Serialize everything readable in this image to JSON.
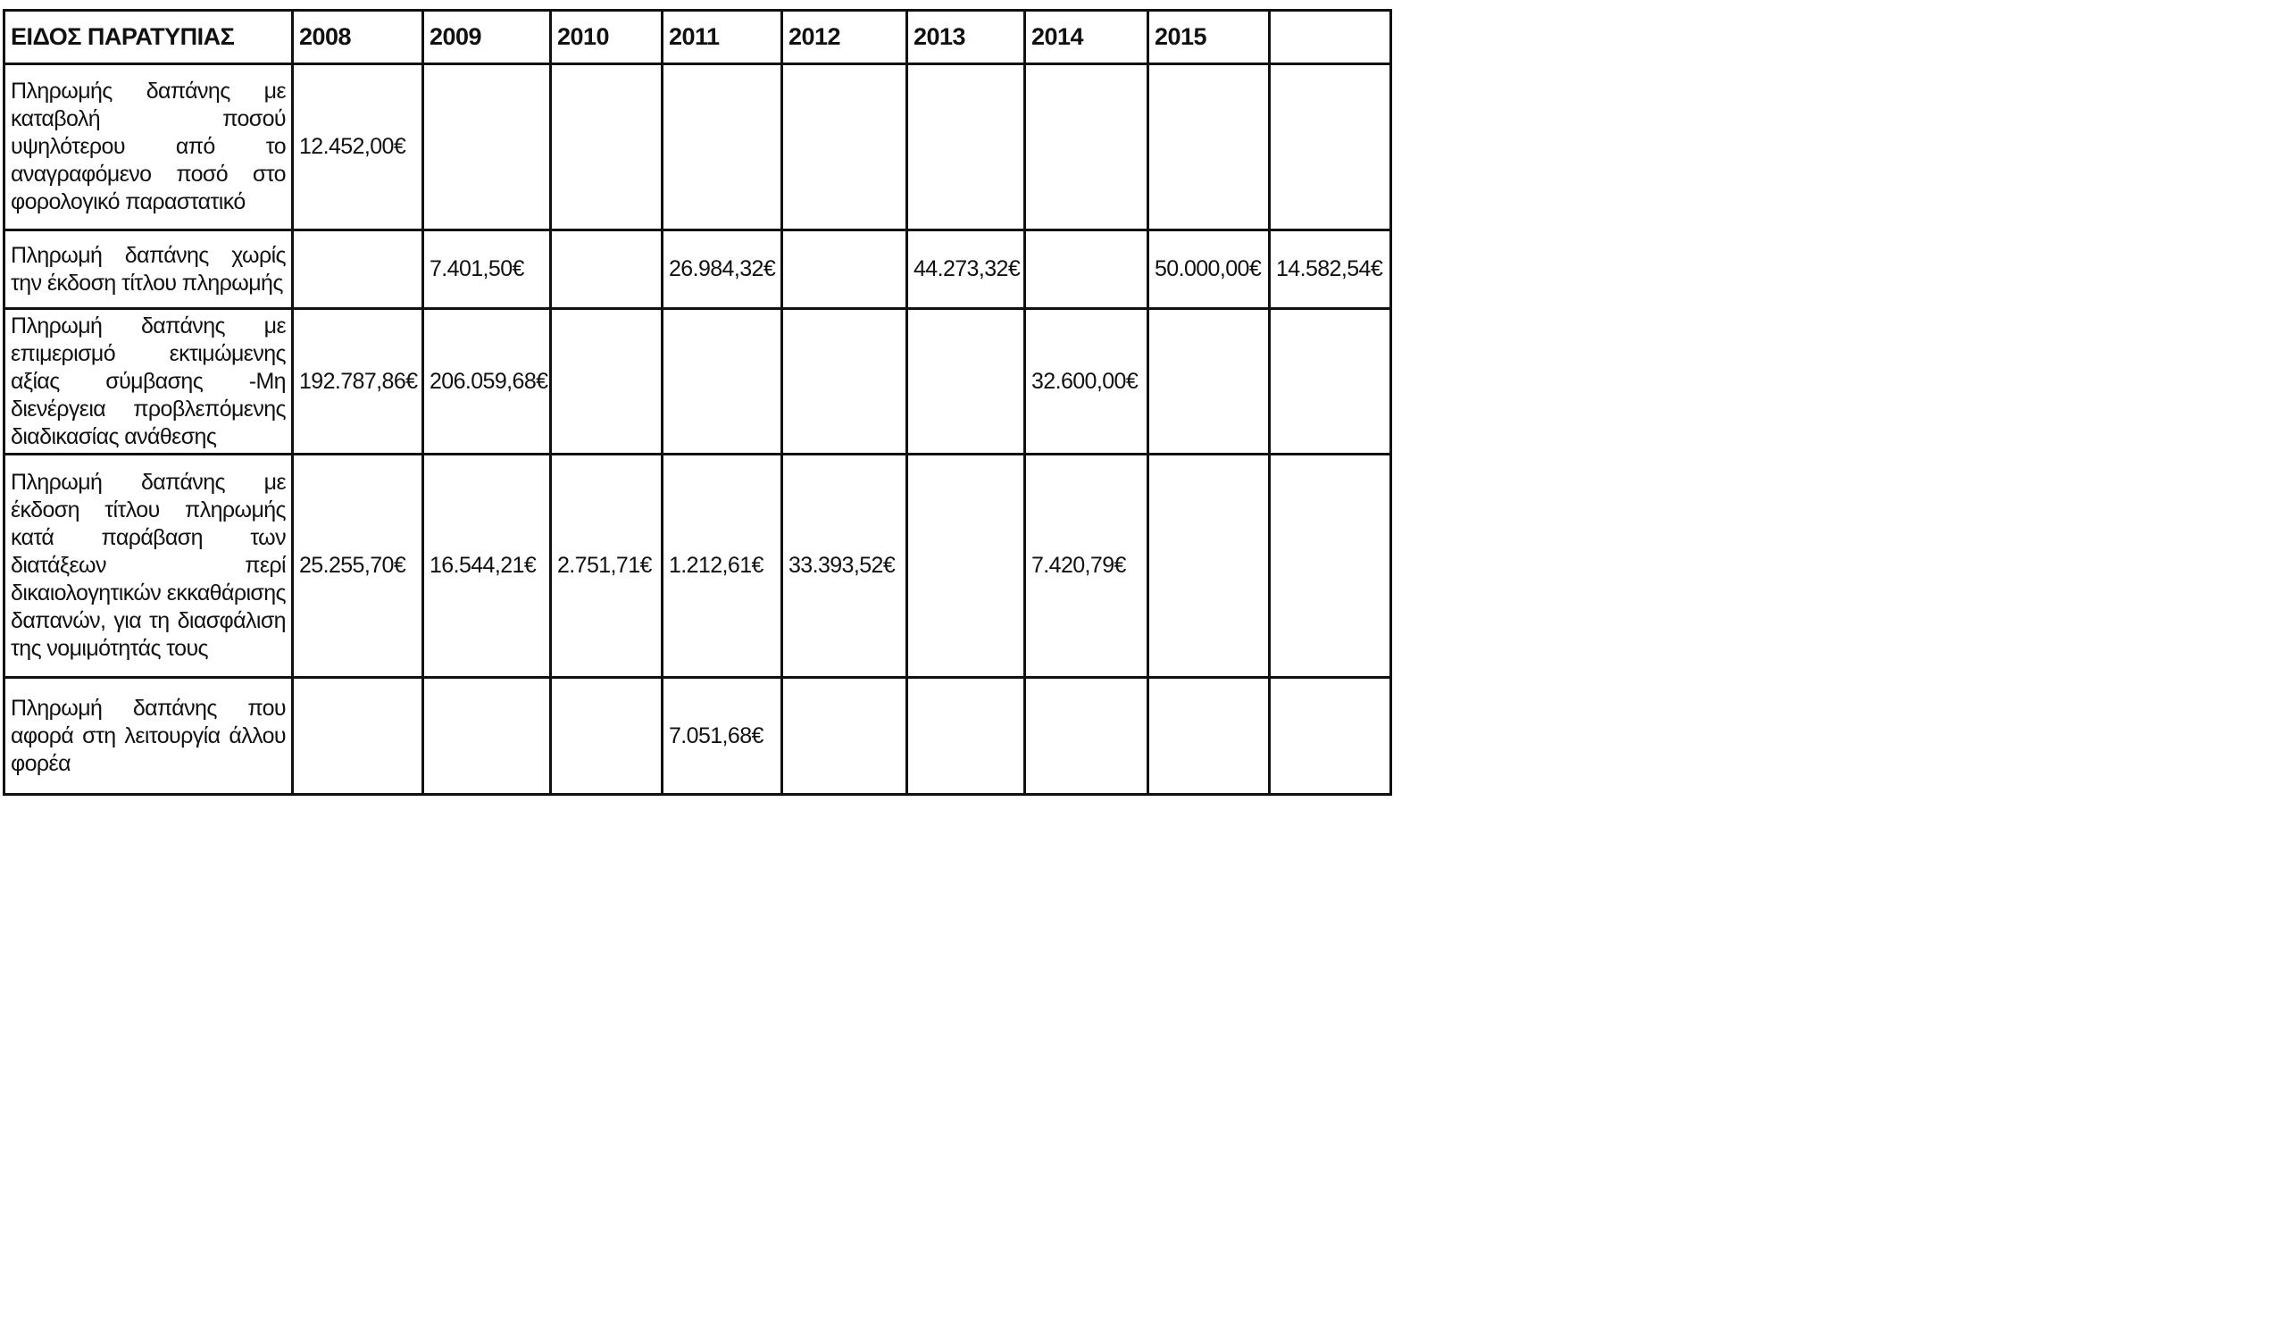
{
  "table": {
    "headers": [
      "ΕΙΔΟΣ ΠΑΡΑΤΥΠΙΑΣ",
      "2008",
      "2009",
      "2010",
      "2011",
      "2012",
      "2013",
      "2014",
      "2015",
      ""
    ],
    "rows": [
      {
        "type": "Πληρωμής δαπάνης με καταβολή ποσού υψηλότερου από το αναγραφόμενο ποσό στο φορολογικό παραστατικό",
        "values": [
          "12.452,00€",
          "",
          "",
          "",
          "",
          "",
          "",
          "",
          ""
        ]
      },
      {
        "type": "Πληρωμή δαπάνης χωρίς την έκδοση τίτλου πληρωμής",
        "values": [
          "",
          "7.401,50€",
          "",
          "26.984,32€",
          "",
          "44.273,32€",
          "",
          "50.000,00€",
          "14.582,54€"
        ]
      },
      {
        "type": "Πληρωμή δαπάνης με επιμερισμό εκτιμώμενης αξίας σύμβασης -Μη διενέργεια προβλεπόμενης διαδικασίας ανάθεσης",
        "values": [
          "192.787,86€",
          "206.059,68€",
          "",
          "",
          "",
          "",
          "32.600,00€",
          "",
          ""
        ]
      },
      {
        "type": "Πληρωμή δαπάνης με έκδοση τίτλου πληρωμής κατά παράβαση των διατάξεων περί δικαιολογητικών εκκαθάρισης δαπανών, για τη διασφάλιση της νομιμότητάς τους",
        "values": [
          "25.255,70€",
          "16.544,21€",
          "2.751,71€",
          "1.212,61€",
          "33.393,52€",
          "",
          "7.420,79€",
          "",
          ""
        ]
      },
      {
        "type": "Πληρωμή δαπάνης που αφορά στη λειτουργία άλλου φορέα",
        "values": [
          "",
          "",
          "",
          "7.051,68€",
          "",
          "",
          "",
          "",
          ""
        ]
      }
    ]
  }
}
